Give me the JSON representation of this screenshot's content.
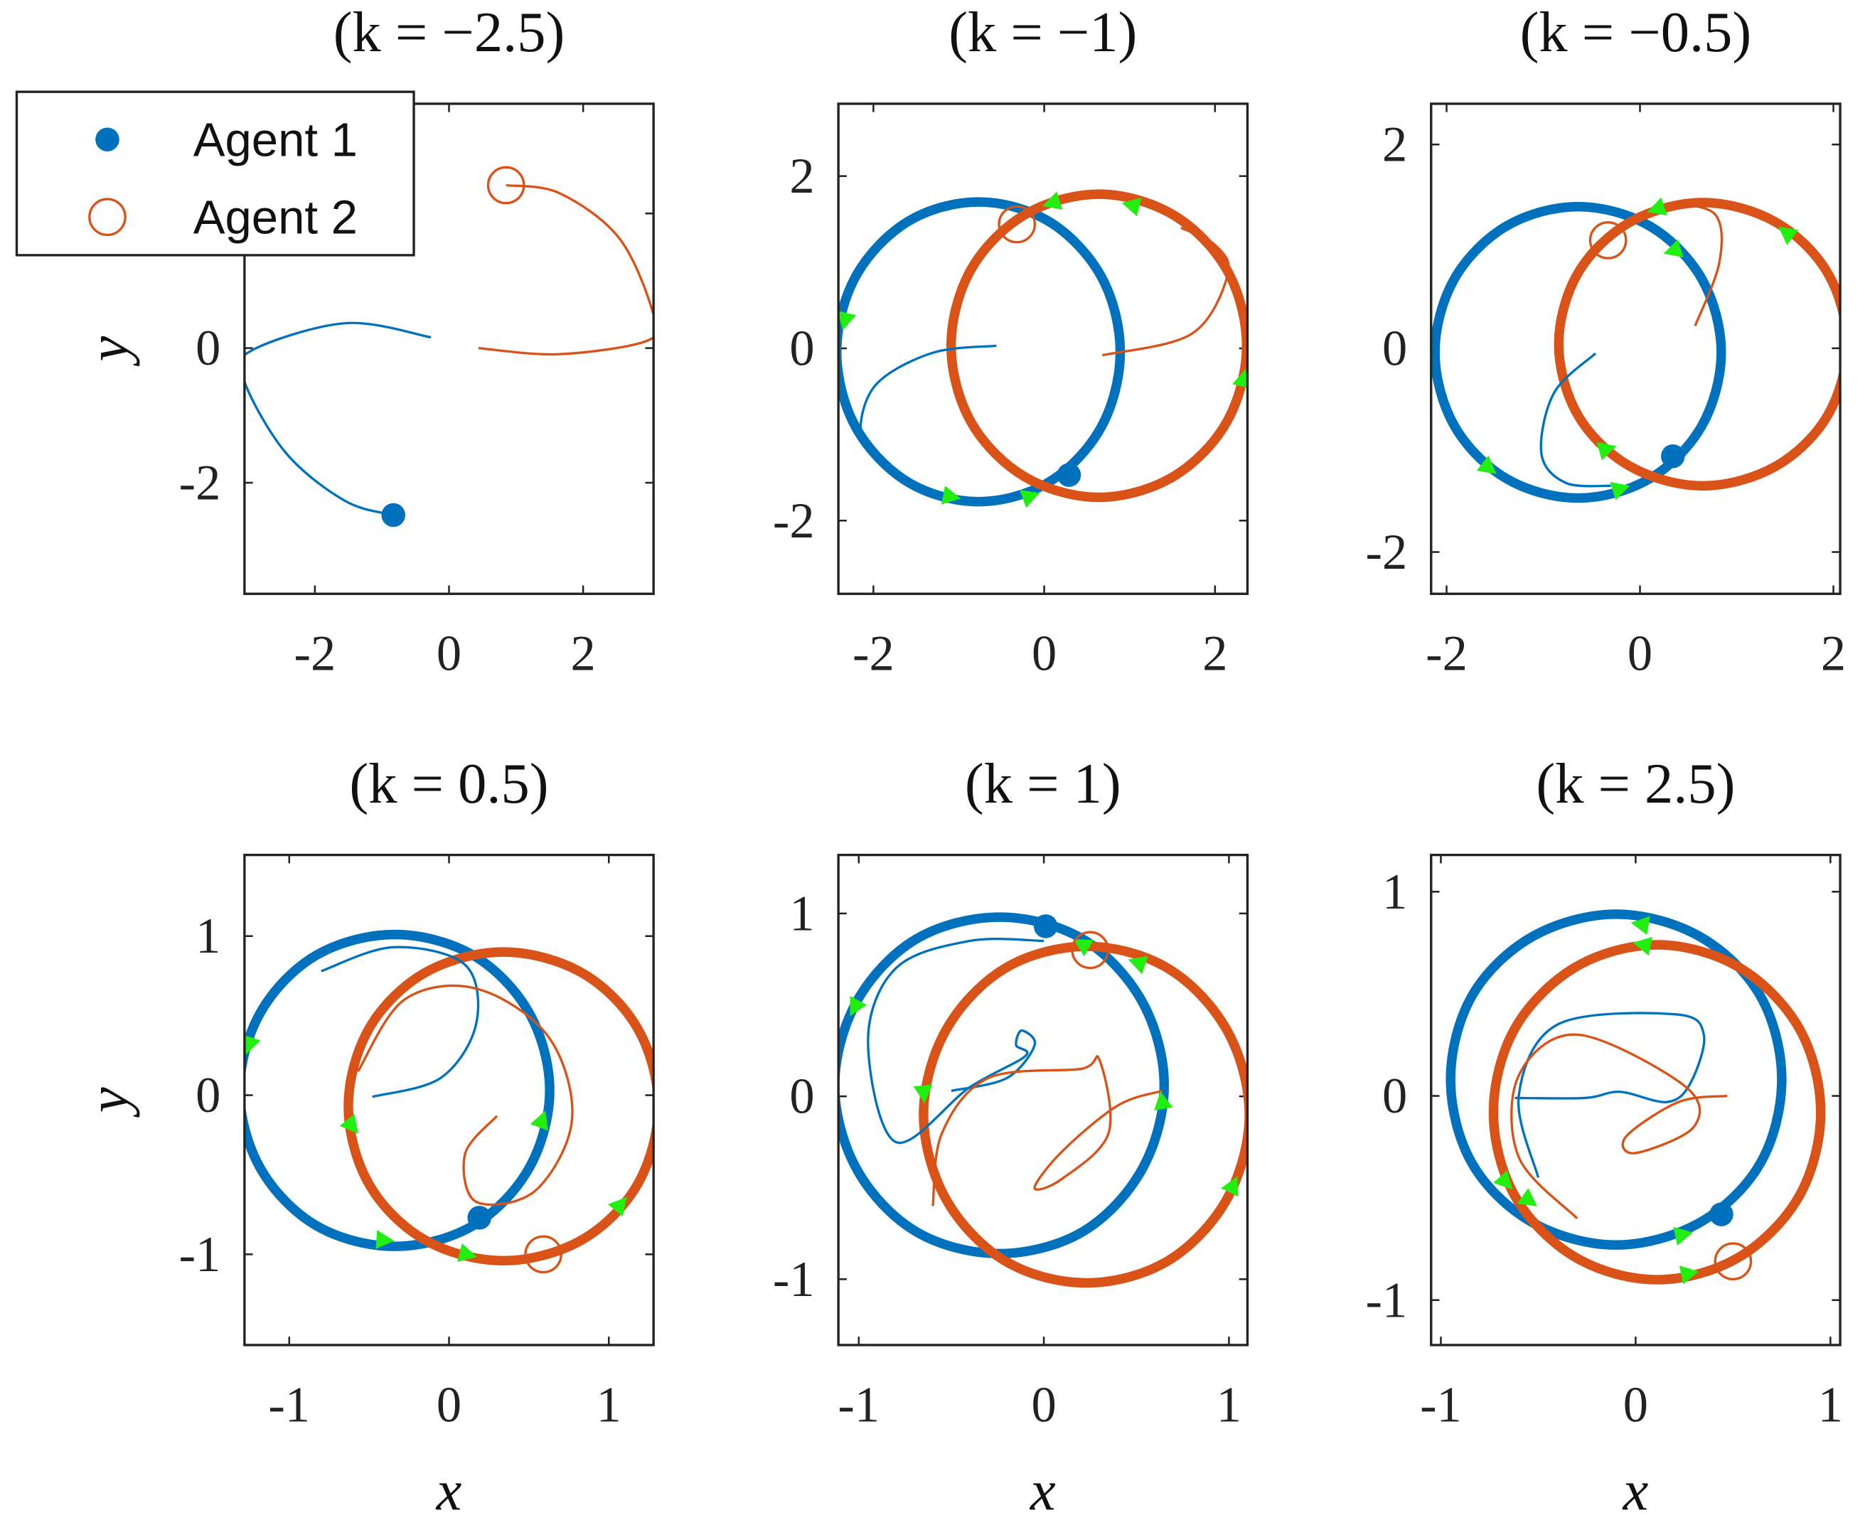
{
  "chart_data": [
    {
      "type": "line",
      "title": "(k = −2.5)",
      "ylabel": "y",
      "xlim": [
        -3.05,
        3.05
      ],
      "ylim": [
        -3.65,
        3.63
      ],
      "xticks": [
        -2,
        0,
        2
      ],
      "yticks": [
        -2,
        0,
        2
      ],
      "legend": "northwest",
      "series": [
        {
          "name": "Agent 1",
          "color": "#0072bd",
          "x": [
            -0.27,
            -1.55,
            -2.97,
            -3.05,
            -2.43,
            -1.55,
            -0.83
          ],
          "y": [
            0.16,
            0.37,
            -0.05,
            -0.5,
            -1.56,
            -2.27,
            -2.48
          ],
          "marker": {
            "x": -0.83,
            "y": -2.48
          }
        },
        {
          "name": "Agent 2",
          "color": "#d95319",
          "x": [
            0.44,
            1.65,
            2.98,
            3.04,
            2.54,
            1.65,
            0.85
          ],
          "y": [
            0.0,
            -0.09,
            0.12,
            0.53,
            1.63,
            2.3,
            2.42
          ],
          "marker": {
            "x": 0.85,
            "y": 2.42
          }
        }
      ]
    },
    {
      "type": "line",
      "title": "(k = −1)",
      "xlim": [
        -2.41,
        2.38
      ],
      "ylim": [
        -2.85,
        2.84
      ],
      "xticks": [
        -2,
        0,
        2
      ],
      "yticks": [
        -2,
        0,
        2
      ],
      "series": [
        {
          "color": "#0072bd",
          "x": [
            -0.56,
            -1.3,
            -1.95,
            -2.15,
            -2.0
          ],
          "y": [
            0.03,
            -0.05,
            -0.4,
            -0.9,
            -1.2
          ],
          "marker": {
            "x": 0.29,
            "y": -1.47
          }
        },
        {
          "color": "#d95319",
          "x": [
            0.68,
            1.73,
            2.15,
            2.0,
            1.6
          ],
          "y": [
            -0.08,
            0.17,
            0.86,
            1.2,
            1.4
          ],
          "marker": {
            "x": -0.32,
            "y": 1.44
          }
        }
      ],
      "orbits": [
        {
          "color": "#0072bd",
          "x": [
            0.89,
            0.67,
            0.06,
            -0.77,
            -1.6,
            -2.21,
            -2.43,
            -2.21,
            -1.6,
            -0.77,
            0.06,
            0.67
          ],
          "y": [
            -0.04,
            0.83,
            1.47,
            1.7,
            1.47,
            0.83,
            -0.04,
            -0.91,
            -1.55,
            -1.78,
            -1.55,
            -0.91
          ]
        },
        {
          "color": "#d95319",
          "x": [
            2.37,
            2.14,
            1.51,
            0.64,
            -0.23,
            -0.86,
            -1.09,
            -0.86,
            -0.23,
            0.64,
            1.51,
            2.14
          ],
          "y": [
            0.03,
            0.91,
            1.55,
            1.79,
            1.55,
            0.91,
            0.03,
            -0.85,
            -1.49,
            -1.73,
            -1.49,
            -0.85
          ]
        }
      ],
      "arrows": {
        "color": "#22ee11",
        "x": [
          0.1,
          1.03,
          -2.33,
          2.33,
          -1.1,
          -0.17
        ],
        "y": [
          1.69,
          1.66,
          0.33,
          -0.36,
          -1.72,
          -1.72
        ]
      }
    },
    {
      "type": "line",
      "title": "(k = −0.5)",
      "xlim": [
        -2.16,
        2.07
      ],
      "ylim": [
        -2.41,
        2.4
      ],
      "xticks": [
        -2,
        0,
        2
      ],
      "yticks": [
        -2,
        0,
        2
      ],
      "series": [
        {
          "color": "#0072bd",
          "x": [
            -0.46,
            -0.89,
            -1.02,
            -0.77,
            -0.3
          ],
          "y": [
            -0.05,
            -0.44,
            -1.03,
            -1.32,
            -1.35
          ],
          "marker": {
            "x": 0.34,
            "y": -1.06
          }
        },
        {
          "color": "#d95319",
          "x": [
            0.57,
            0.82,
            0.78,
            0.33
          ],
          "y": [
            0.22,
            0.84,
            1.31,
            1.43
          ],
          "marker": {
            "x": -0.33,
            "y": 1.06
          }
        }
      ],
      "orbits": [
        {
          "color": "#0072bd",
          "x": [
            0.84,
            0.64,
            0.1,
            -0.64,
            -1.38,
            -1.92,
            -2.12,
            -1.92,
            -1.38,
            -0.64,
            0.1,
            0.64
          ],
          "y": [
            -0.04,
            0.68,
            1.2,
            1.39,
            1.2,
            0.68,
            -0.04,
            -0.76,
            -1.28,
            -1.47,
            -1.28,
            -0.76
          ]
        },
        {
          "color": "#d95319",
          "x": [
            2.14,
            1.94,
            1.4,
            0.65,
            -0.1,
            -0.64,
            -0.84,
            -0.64,
            -0.1,
            0.65,
            1.4,
            1.94
          ],
          "y": [
            0.04,
            0.74,
            1.24,
            1.43,
            1.24,
            0.74,
            0.04,
            -0.66,
            -1.16,
            -1.35,
            -1.16,
            -0.66
          ]
        }
      ],
      "arrows": {
        "color": "#22ee11",
        "x": [
          0.18,
          1.52,
          0.35,
          -1.57,
          -0.35,
          -0.21
        ],
        "y": [
          1.37,
          1.13,
          0.96,
          -1.17,
          -0.99,
          -1.38
        ]
      }
    },
    {
      "type": "line",
      "title": "(k = 0.5)",
      "xlabel": "x",
      "ylabel": "y",
      "xlim": [
        -1.28,
        1.28
      ],
      "ylim": [
        -1.57,
        1.51
      ],
      "xticks": [
        -1,
        0,
        1
      ],
      "yticks": [
        -1,
        0,
        1
      ],
      "series": [
        {
          "color": "#0072bd",
          "x": [
            -0.48,
            -0.05,
            0.17,
            0.1,
            -0.35,
            -0.8
          ],
          "y": [
            -0.01,
            0.11,
            0.45,
            0.82,
            0.93,
            0.78
          ],
          "marker": {
            "x": 0.19,
            "y": -0.77
          }
        },
        {
          "color": "#d95319",
          "x": [
            0.3,
            0.1,
            0.17,
            0.54,
            0.77,
            0.62,
            0.17,
            -0.28,
            -0.57
          ],
          "y": [
            -0.13,
            -0.37,
            -0.67,
            -0.6,
            -0.15,
            0.37,
            0.67,
            0.6,
            0.15
          ],
          "marker": {
            "x": 0.59,
            "y": -1.0
          }
        }
      ],
      "orbits": [
        {
          "color": "#0072bd",
          "x": [
            0.63,
            0.5,
            0.15,
            -0.34,
            -0.83,
            -1.18,
            -1.31,
            -1.18,
            -0.83,
            -0.34,
            0.15,
            0.5
          ],
          "y": [
            0.03,
            0.52,
            0.88,
            1.01,
            0.88,
            0.52,
            0.03,
            -0.46,
            -0.82,
            -0.95,
            -0.82,
            -0.46
          ]
        },
        {
          "color": "#d95319",
          "x": [
            1.31,
            1.18,
            0.83,
            0.34,
            -0.15,
            -0.5,
            -0.63,
            -0.5,
            -0.15,
            0.34,
            0.83,
            1.18
          ],
          "y": [
            -0.07,
            0.42,
            0.77,
            0.9,
            0.77,
            0.42,
            -0.07,
            -0.56,
            -0.91,
            -1.04,
            -0.91,
            -0.56
          ]
        }
      ],
      "arrows": {
        "color": "#22ee11",
        "x": [
          -1.25,
          -0.61,
          0.58,
          1.07,
          -0.41,
          0.11
        ],
        "y": [
          0.32,
          -0.19,
          -0.16,
          -0.69,
          -0.91,
          -1.0
        ]
      }
    },
    {
      "type": "line",
      "title": "(k = 1)",
      "xlabel": "x",
      "xlim": [
        -1.11,
        1.1
      ],
      "ylim": [
        -1.36,
        1.32
      ],
      "xticks": [
        -1,
        0,
        1
      ],
      "yticks": [
        -1,
        0,
        1
      ],
      "series": [
        {
          "color": "#0072bd",
          "x": [
            -0.5,
            -0.2,
            -0.05,
            -0.12,
            -0.15,
            -0.1,
            -0.4,
            -0.8,
            -0.95,
            -0.8,
            -0.4,
            0.0
          ],
          "y": [
            0.03,
            0.1,
            0.28,
            0.36,
            0.28,
            0.22,
            0.05,
            -0.25,
            0.3,
            0.7,
            0.85,
            0.85
          ],
          "marker": {
            "x": 0.01,
            "y": 0.93
          }
        },
        {
          "color": "#d95319",
          "x": [
            0.64,
            0.4,
            0.1,
            -0.05,
            0.1,
            0.35,
            0.3,
            0.2,
            -0.3,
            -0.55,
            -0.6
          ],
          "y": [
            0.03,
            -0.05,
            -0.3,
            -0.5,
            -0.45,
            -0.2,
            0.2,
            0.15,
            0.1,
            -0.2,
            -0.6
          ],
          "marker": {
            "x": 0.25,
            "y": 0.8
          }
        }
      ],
      "orbits": [
        {
          "color": "#0072bd",
          "x": [
            0.65,
            0.53,
            0.21,
            -0.24,
            -0.69,
            -1.01,
            -1.13,
            -1.01,
            -0.69,
            -0.24,
            0.21,
            0.53
          ],
          "y": [
            0.06,
            0.52,
            0.86,
            0.98,
            0.86,
            0.52,
            0.06,
            -0.4,
            -0.74,
            -0.86,
            -0.74,
            -0.4
          ]
        },
        {
          "color": "#d95319",
          "x": [
            1.11,
            0.99,
            0.67,
            0.23,
            -0.21,
            -0.53,
            -0.65,
            -0.53,
            -0.21,
            0.23,
            0.67,
            0.99
          ],
          "y": [
            -0.1,
            0.36,
            0.7,
            0.82,
            0.7,
            0.36,
            -0.1,
            -0.56,
            -0.9,
            -1.02,
            -0.9,
            -0.56
          ]
        }
      ],
      "arrows": {
        "color": "#22ee11",
        "x": [
          -1.02,
          -0.65,
          0.21,
          0.51,
          0.64,
          1.02
        ],
        "y": [
          0.49,
          0.02,
          0.83,
          0.73,
          -0.03,
          -0.49
        ]
      }
    },
    {
      "type": "line",
      "title": "(k = 2.5)",
      "xlabel": "x",
      "xlim": [
        -1.05,
        1.05
      ],
      "ylim": [
        -1.22,
        1.18
      ],
      "xticks": [
        -1,
        0,
        1
      ],
      "yticks": [
        -1,
        0,
        1
      ],
      "series": [
        {
          "color": "#0072bd",
          "x": [
            -0.62,
            -0.26,
            -0.08,
            0.16,
            0.28,
            0.35,
            0.2,
            -0.4,
            -0.6,
            -0.5
          ],
          "y": [
            -0.01,
            -0.01,
            0.02,
            -0.03,
            0.06,
            0.3,
            0.4,
            0.35,
            0.0,
            -0.4
          ],
          "marker": {
            "x": 0.44,
            "y": -0.58
          }
        },
        {
          "color": "#d95319",
          "x": [
            0.47,
            0.22,
            -0.05,
            0.0,
            0.3,
            0.25,
            -0.3,
            -0.6,
            -0.6,
            -0.3
          ],
          "y": [
            0.0,
            -0.03,
            -0.2,
            -0.28,
            -0.15,
            0.05,
            0.3,
            0.1,
            -0.3,
            -0.6
          ],
          "marker": {
            "x": 0.5,
            "y": -0.81
          }
        }
      ],
      "orbits": [
        {
          "color": "#0072bd",
          "x": [
            0.75,
            0.64,
            0.33,
            -0.1,
            -0.53,
            -0.84,
            -0.95,
            -0.84,
            -0.53,
            -0.1,
            0.33,
            0.64
          ],
          "y": [
            0.08,
            0.49,
            0.78,
            0.89,
            0.78,
            0.49,
            0.08,
            -0.33,
            -0.62,
            -0.73,
            -0.62,
            -0.33
          ]
        },
        {
          "color": "#d95319",
          "x": [
            0.95,
            0.84,
            0.53,
            0.11,
            -0.31,
            -0.62,
            -0.73,
            -0.62,
            -0.31,
            0.11,
            0.53,
            0.84
          ],
          "y": [
            -0.08,
            0.33,
            0.63,
            0.74,
            0.63,
            0.33,
            -0.08,
            -0.49,
            -0.79,
            -0.9,
            -0.79,
            -0.49
          ]
        }
      ],
      "arrows": {
        "color": "#22ee11",
        "x": [
          0.03,
          0.04,
          -0.67,
          -0.55,
          0.24,
          0.27
        ],
        "y": [
          0.84,
          0.74,
          -0.42,
          -0.51,
          -0.68,
          -0.87
        ]
      }
    }
  ]
}
